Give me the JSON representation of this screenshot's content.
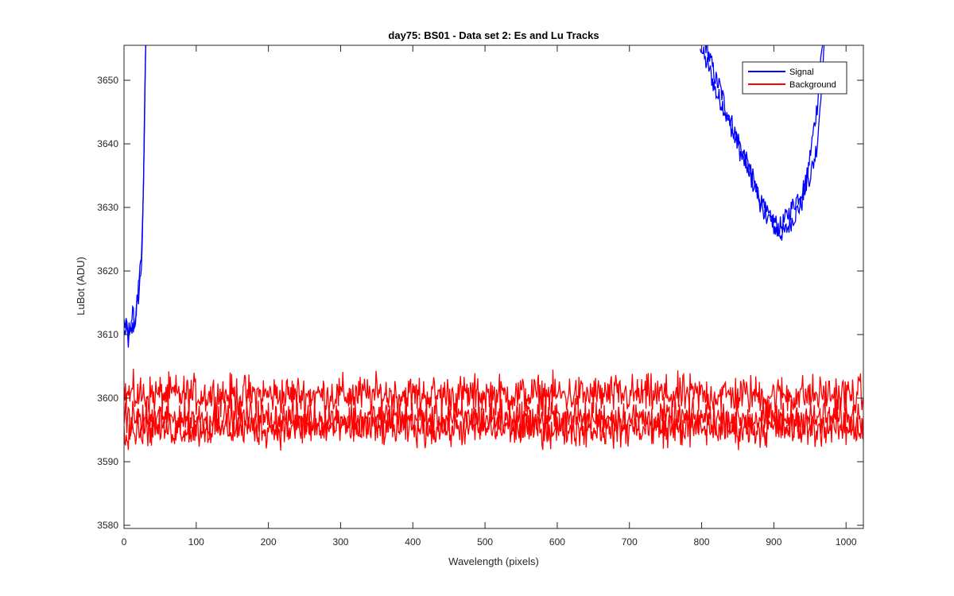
{
  "chart_data": {
    "type": "line",
    "title": "day75: BS01 - Data set 2: Es and Lu Tracks",
    "xlabel": "Wavelength (pixels)",
    "ylabel": "LuBot (ADU)",
    "xlim": [
      0,
      1024
    ],
    "ylim": [
      3579.5,
      3655.5
    ],
    "xticks": [
      0,
      100,
      200,
      300,
      400,
      500,
      600,
      700,
      800,
      900,
      1000
    ],
    "yticks": [
      3580,
      3590,
      3600,
      3610,
      3620,
      3630,
      3640,
      3650
    ],
    "grid": false,
    "legend_position": "top-right",
    "series": [
      {
        "name": "Signal",
        "color": "#0000ff",
        "tracks": [
          {
            "x": [
              0,
              3,
              6,
              9,
              12,
              15,
              18,
              21,
              24,
              26,
              27,
              28,
              29,
              30,
              31,
              798,
              800,
              805,
              810,
              815,
              820,
              825,
              830,
              835,
              840,
              845,
              850,
              855,
              860,
              865,
              870,
              875,
              880,
              885,
              890,
              895,
              900,
              905,
              910,
              915,
              920,
              925,
              930,
              935,
              940,
              945,
              950,
              955,
              960,
              962,
              964,
              966,
              968,
              970
            ],
            "y": [
              3612,
              3611,
              3609,
              3610,
              3611,
              3612,
              3614,
              3617,
              3621,
              3627,
              3633,
              3640,
              3648,
              3654,
              3656,
              3656,
              3655,
              3653,
              3652,
              3650,
              3648,
              3647,
              3646,
              3644,
              3643,
              3641,
              3640,
              3638,
              3637,
              3636,
              3634,
              3633,
              3631,
              3630,
              3629,
              3628,
              3627,
              3626,
              3626,
              3626,
              3627,
              3628,
              3629,
              3630,
              3631,
              3634,
              3638,
              3642,
              3646,
              3649,
              3652,
              3654,
              3656,
              3657
            ]
          },
          {
            "x": [
              0,
              3,
              6,
              9,
              12,
              15,
              18,
              21,
              24,
              26,
              27,
              28,
              29,
              30,
              31,
              805,
              810,
              815,
              820,
              825,
              830,
              835,
              840,
              845,
              850,
              855,
              860,
              865,
              870,
              875,
              880,
              885,
              890,
              895,
              900,
              905,
              910,
              915,
              920,
              925,
              930,
              935,
              940,
              945,
              950,
              955,
              960,
              962,
              964,
              966,
              968,
              970
            ],
            "y": [
              3610,
              3611,
              3610,
              3612,
              3613,
              3612,
              3615,
              3618,
              3622,
              3628,
              3634,
              3641,
              3649,
              3655,
              3656,
              3656,
              3654,
              3652,
              3650,
              3649,
              3647,
              3645,
              3644,
              3642,
              3641,
              3639,
              3638,
              3636,
              3635,
              3633,
              3632,
              3630,
              3629,
              3628,
              3628,
              3627,
              3627,
              3628,
              3629,
              3630,
              3631,
              3632,
              3633,
              3634,
              3635,
              3637,
              3640,
              3643,
              3646,
              3650,
              3653,
              3656
            ]
          }
        ]
      },
      {
        "name": "Background",
        "color": "#ff0000",
        "tracks": [
          {
            "x": [
              0,
              1024
            ],
            "y": [
              3600.5,
              3600.5
            ],
            "noise": 2.2
          },
          {
            "x": [
              0,
              1024
            ],
            "y": [
              3596.8,
              3596.8
            ],
            "noise": 2.0
          },
          {
            "x": [
              0,
              1024
            ],
            "y": [
              3595.2,
              3595.2
            ],
            "noise": 2.0
          }
        ]
      }
    ]
  }
}
